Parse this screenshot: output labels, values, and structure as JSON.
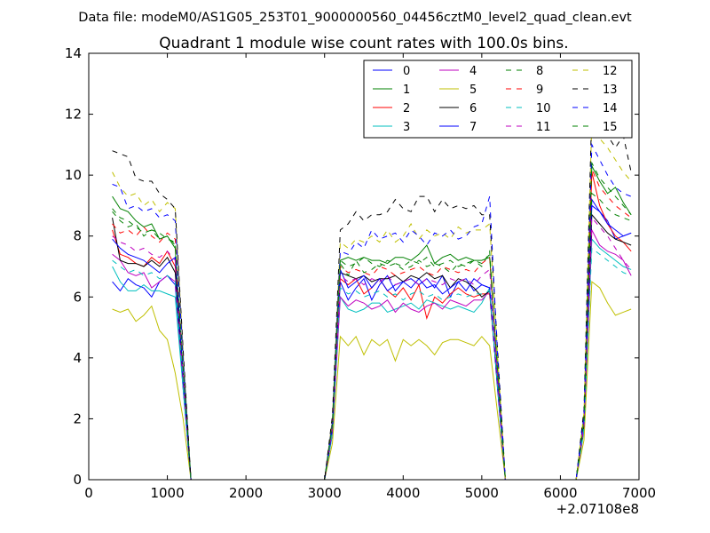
{
  "figure": {
    "suptitle": "Data file: modeM0/AS1G05_253T01_9000000560_04456cztM0_level2_quad_clean.evt",
    "x_offset_label": "+2.07108e8"
  },
  "chart_data": {
    "type": "line",
    "title": "Quadrant 1 module wise count rates with 100.0s bins.",
    "xlabel": "",
    "ylabel": "",
    "xlim": [
      0,
      7000
    ],
    "ylim": [
      0,
      14
    ],
    "xticks": [
      0,
      1000,
      2000,
      3000,
      4000,
      5000,
      6000,
      7000
    ],
    "yticks": [
      0,
      2,
      4,
      6,
      8,
      10,
      12,
      14
    ],
    "grid": false,
    "legend_position": "top-right",
    "legend_columns": 4,
    "x": [
      300,
      400,
      500,
      600,
      700,
      800,
      900,
      1000,
      1100,
      1200,
      1300,
      1400,
      1500,
      1600,
      1700,
      1800,
      1900,
      2000,
      2100,
      2200,
      2300,
      2400,
      2500,
      2600,
      2700,
      2800,
      2900,
      3000,
      3100,
      3200,
      3300,
      3400,
      3500,
      3600,
      3700,
      3800,
      3900,
      4000,
      4100,
      4200,
      4300,
      4400,
      4500,
      4600,
      4700,
      4800,
      4900,
      5000,
      5100,
      5200,
      5300,
      5400,
      5500,
      5600,
      5700,
      5800,
      5900,
      6000,
      6100,
      6200,
      6300,
      6400,
      6500,
      6600,
      6700,
      6800,
      6900
    ],
    "series": [
      {
        "name": "0",
        "color": "#0000ff",
        "dash": "solid",
        "values": [
          6.5,
          6.2,
          6.6,
          6.4,
          6.3,
          6.0,
          6.5,
          6.7,
          6.4,
          3.0,
          0,
          0,
          0,
          0,
          0,
          0,
          0,
          0,
          0,
          0,
          0,
          0,
          0,
          0,
          0,
          0,
          0,
          0,
          1.5,
          6.5,
          5.9,
          6.3,
          6.6,
          5.9,
          6.4,
          6.7,
          6.2,
          6.5,
          6.6,
          6.4,
          6.6,
          6.3,
          6.7,
          6.0,
          6.5,
          6.6,
          6.2,
          6.4,
          6.3,
          3.0,
          0,
          0,
          0,
          0,
          0,
          0,
          0,
          0,
          0,
          0,
          1.8,
          9.0,
          8.8,
          8.5,
          7.9,
          8.0,
          8.1
        ]
      },
      {
        "name": "1",
        "color": "#008000",
        "dash": "solid",
        "values": [
          9.3,
          8.9,
          8.8,
          8.5,
          8.3,
          8.4,
          7.9,
          8.0,
          7.6,
          3.5,
          0,
          0,
          0,
          0,
          0,
          0,
          0,
          0,
          0,
          0,
          0,
          0,
          0,
          0,
          0,
          0,
          0,
          0,
          1.8,
          7.2,
          7.3,
          7.2,
          7.3,
          7.2,
          7.2,
          7.1,
          7.3,
          7.3,
          7.2,
          7.4,
          7.7,
          7.1,
          7.3,
          7.4,
          7.2,
          7.3,
          7.2,
          7.2,
          7.3,
          3.6,
          0,
          0,
          0,
          0,
          0,
          0,
          0,
          0,
          0,
          0,
          2.0,
          10.3,
          9.8,
          9.4,
          9.6,
          9.1,
          8.7
        ]
      },
      {
        "name": "2",
        "color": "#ff0000",
        "dash": "solid",
        "values": [
          8.2,
          7.4,
          7.3,
          7.1,
          7.0,
          7.3,
          7.1,
          7.5,
          7.0,
          3.4,
          0,
          0,
          0,
          0,
          0,
          0,
          0,
          0,
          0,
          0,
          0,
          0,
          0,
          0,
          0,
          0,
          0,
          0,
          1.7,
          6.6,
          6.4,
          6.6,
          6.1,
          6.3,
          6.6,
          6.2,
          6.0,
          6.3,
          5.9,
          6.4,
          5.3,
          6.0,
          5.8,
          6.1,
          6.3,
          6.1,
          6.0,
          6.1,
          6.1,
          3.1,
          0,
          0,
          0,
          0,
          0,
          0,
          0,
          0,
          0,
          0,
          1.9,
          10.1,
          9.0,
          8.4,
          8.0,
          7.8,
          7.5
        ]
      },
      {
        "name": "3",
        "color": "#00bfbf",
        "dash": "solid",
        "values": [
          7.0,
          6.5,
          6.2,
          6.2,
          6.4,
          6.2,
          6.2,
          6.1,
          6.0,
          3.0,
          0,
          0,
          0,
          0,
          0,
          0,
          0,
          0,
          0,
          0,
          0,
          0,
          0,
          0,
          0,
          0,
          0,
          0,
          1.5,
          6.0,
          5.6,
          5.5,
          5.6,
          5.8,
          5.8,
          5.5,
          5.6,
          5.7,
          5.8,
          5.6,
          5.9,
          5.8,
          5.7,
          5.6,
          5.7,
          5.6,
          5.5,
          5.8,
          6.3,
          3.0,
          0,
          0,
          0,
          0,
          0,
          0,
          0,
          0,
          0,
          0,
          1.6,
          7.9,
          7.6,
          7.4,
          7.2,
          7.0,
          6.9
        ]
      },
      {
        "name": "4",
        "color": "#bf00bf",
        "dash": "solid",
        "values": [
          7.4,
          7.2,
          6.8,
          6.7,
          6.8,
          6.3,
          6.5,
          6.7,
          6.5,
          3.2,
          0,
          0,
          0,
          0,
          0,
          0,
          0,
          0,
          0,
          0,
          0,
          0,
          0,
          0,
          0,
          0,
          0,
          0,
          1.6,
          6.0,
          5.7,
          5.9,
          5.8,
          5.6,
          5.7,
          5.9,
          5.5,
          5.8,
          5.6,
          5.5,
          5.7,
          5.8,
          5.6,
          5.9,
          5.8,
          5.7,
          5.9,
          5.9,
          6.2,
          3.1,
          0,
          0,
          0,
          0,
          0,
          0,
          0,
          0,
          0,
          0,
          1.7,
          8.2,
          7.7,
          7.5,
          7.4,
          7.2,
          6.7
        ]
      },
      {
        "name": "5",
        "color": "#bfbf00",
        "dash": "solid",
        "values": [
          5.6,
          5.5,
          5.6,
          5.2,
          5.4,
          5.7,
          4.9,
          4.6,
          3.5,
          2.0,
          0,
          0,
          0,
          0,
          0,
          0,
          0,
          0,
          0,
          0,
          0,
          0,
          0,
          0,
          0,
          0,
          0,
          0,
          1.2,
          4.7,
          4.4,
          4.7,
          4.1,
          4.6,
          4.4,
          4.6,
          3.9,
          4.6,
          4.4,
          4.6,
          4.4,
          4.1,
          4.5,
          4.6,
          4.6,
          4.5,
          4.4,
          4.7,
          4.4,
          2.2,
          0,
          0,
          0,
          0,
          0,
          0,
          0,
          0,
          0,
          0,
          1.3,
          6.5,
          6.3,
          5.8,
          5.4,
          5.5,
          5.6
        ]
      },
      {
        "name": "6",
        "color": "#000000",
        "dash": "solid",
        "values": [
          8.6,
          7.2,
          7.1,
          7.1,
          7.0,
          7.2,
          7.0,
          7.3,
          6.8,
          3.4,
          0,
          0,
          0,
          0,
          0,
          0,
          0,
          0,
          0,
          0,
          0,
          0,
          0,
          0,
          0,
          0,
          0,
          0,
          1.7,
          6.8,
          6.7,
          6.6,
          6.7,
          6.5,
          6.6,
          6.6,
          6.7,
          6.5,
          6.7,
          6.6,
          6.8,
          6.6,
          6.7,
          6.3,
          6.6,
          6.5,
          6.3,
          6.0,
          6.2,
          3.1,
          0,
          0,
          0,
          0,
          0,
          0,
          0,
          0,
          0,
          0,
          1.8,
          8.7,
          8.4,
          8.1,
          7.9,
          7.8,
          7.7
        ]
      },
      {
        "name": "7",
        "color": "#0000ff",
        "dash": "solid",
        "values": [
          7.9,
          7.6,
          7.4,
          7.3,
          7.2,
          7.0,
          6.8,
          7.1,
          7.3,
          3.4,
          0,
          0,
          0,
          0,
          0,
          0,
          0,
          0,
          0,
          0,
          0,
          0,
          0,
          0,
          0,
          0,
          0,
          0,
          1.7,
          6.9,
          6.3,
          6.5,
          6.7,
          6.3,
          6.6,
          6.2,
          6.4,
          6.5,
          6.3,
          6.6,
          6.3,
          6.4,
          6.1,
          6.3,
          6.5,
          6.2,
          6.6,
          6.4,
          6.3,
          3.1,
          0,
          0,
          0,
          0,
          0,
          0,
          0,
          0,
          0,
          0,
          1.9,
          9.2,
          8.8,
          8.4,
          8.2,
          8.0,
          8.1
        ]
      },
      {
        "name": "8",
        "color": "#008000",
        "dash": "dashed",
        "values": [
          8.8,
          8.5,
          8.3,
          8.4,
          8.0,
          8.2,
          8.1,
          7.9,
          7.8,
          3.6,
          0,
          0,
          0,
          0,
          0,
          0,
          0,
          0,
          0,
          0,
          0,
          0,
          0,
          0,
          0,
          0,
          0,
          0,
          1.8,
          7.1,
          6.7,
          7.2,
          6.8,
          6.9,
          7.1,
          7.0,
          7.1,
          6.9,
          7.0,
          7.2,
          7.0,
          7.1,
          7.0,
          6.8,
          7.1,
          7.0,
          7.2,
          7.0,
          7.5,
          3.5,
          0,
          0,
          0,
          0,
          0,
          0,
          0,
          0,
          0,
          0,
          2.0,
          9.4,
          9.2,
          8.9,
          8.7,
          8.6,
          8.5
        ]
      },
      {
        "name": "9",
        "color": "#ff0000",
        "dash": "dashed",
        "values": [
          8.4,
          8.1,
          8.2,
          8.0,
          8.3,
          8.0,
          7.8,
          8.1,
          7.9,
          3.6,
          0,
          0,
          0,
          0,
          0,
          0,
          0,
          0,
          0,
          0,
          0,
          0,
          0,
          0,
          0,
          0,
          0,
          0,
          1.8,
          7.0,
          6.8,
          6.9,
          6.8,
          6.7,
          7.0,
          6.9,
          6.7,
          6.8,
          6.9,
          7.0,
          6.8,
          6.7,
          7.0,
          6.9,
          6.8,
          6.9,
          6.8,
          7.1,
          7.3,
          3.5,
          0,
          0,
          0,
          0,
          0,
          0,
          0,
          0,
          0,
          0,
          1.9,
          10.2,
          9.6,
          9.3,
          9.0,
          8.8,
          8.6
        ]
      },
      {
        "name": "10",
        "color": "#00bfbf",
        "dash": "dashed",
        "values": [
          7.2,
          7.0,
          6.8,
          6.9,
          6.7,
          6.8,
          6.6,
          6.7,
          6.5,
          3.2,
          0,
          0,
          0,
          0,
          0,
          0,
          0,
          0,
          0,
          0,
          0,
          0,
          0,
          0,
          0,
          0,
          0,
          0,
          1.6,
          6.3,
          6.1,
          6.2,
          6.0,
          6.1,
          6.2,
          6.0,
          6.1,
          5.9,
          6.1,
          6.2,
          6.0,
          6.1,
          5.9,
          6.0,
          6.1,
          6.0,
          6.1,
          6.1,
          6.2,
          3.1,
          0,
          0,
          0,
          0,
          0,
          0,
          0,
          0,
          0,
          0,
          1.7,
          7.6,
          7.4,
          7.2,
          7.0,
          6.8,
          6.7
        ]
      },
      {
        "name": "11",
        "color": "#bf00bf",
        "dash": "dashed",
        "values": [
          8.0,
          7.8,
          7.7,
          7.5,
          7.6,
          7.4,
          7.3,
          7.5,
          7.2,
          3.5,
          0,
          0,
          0,
          0,
          0,
          0,
          0,
          0,
          0,
          0,
          0,
          0,
          0,
          0,
          0,
          0,
          0,
          0,
          1.7,
          6.7,
          6.5,
          6.6,
          6.4,
          6.6,
          6.5,
          6.7,
          6.4,
          6.5,
          6.6,
          6.4,
          6.6,
          6.5,
          6.4,
          6.6,
          6.5,
          6.6,
          6.4,
          6.7,
          6.9,
          3.3,
          0,
          0,
          0,
          0,
          0,
          0,
          0,
          0,
          0,
          0,
          1.8,
          8.6,
          8.3,
          8.0,
          7.6,
          7.2,
          6.9
        ]
      },
      {
        "name": "12",
        "color": "#bfbf00",
        "dash": "dashed",
        "values": [
          10.1,
          9.6,
          9.3,
          9.4,
          9.0,
          9.2,
          8.8,
          9.1,
          8.9,
          4.2,
          0,
          0,
          0,
          0,
          0,
          0,
          0,
          0,
          0,
          0,
          0,
          0,
          0,
          0,
          0,
          0,
          0,
          0,
          2.0,
          7.8,
          7.6,
          7.9,
          7.8,
          8.0,
          7.8,
          8.2,
          7.8,
          8.0,
          8.4,
          7.9,
          8.2,
          8.0,
          8.1,
          7.9,
          8.3,
          8.1,
          8.2,
          8.2,
          8.4,
          4.1,
          0,
          0,
          0,
          0,
          0,
          0,
          0,
          0,
          0,
          0,
          2.2,
          11.8,
          11.2,
          10.9,
          10.5,
          10.1,
          9.8
        ]
      },
      {
        "name": "13",
        "color": "#000000",
        "dash": "dashed",
        "values": [
          10.8,
          10.7,
          10.6,
          9.9,
          9.8,
          9.8,
          9.4,
          9.2,
          8.9,
          4.3,
          0,
          0,
          0,
          0,
          0,
          0,
          0,
          0,
          0,
          0,
          0,
          0,
          0,
          0,
          0,
          0,
          0,
          0,
          2.1,
          8.2,
          8.4,
          8.8,
          8.5,
          8.7,
          8.7,
          8.8,
          9.2,
          8.9,
          8.8,
          9.3,
          9.3,
          8.8,
          9.2,
          8.9,
          9.0,
          8.9,
          9.0,
          8.7,
          8.7,
          4.3,
          0,
          0,
          0,
          0,
          0,
          0,
          0,
          0,
          0,
          0,
          2.3,
          12.2,
          11.8,
          11.3,
          10.9,
          11.3,
          10.1
        ]
      },
      {
        "name": "14",
        "color": "#0000ff",
        "dash": "dashed",
        "values": [
          9.7,
          9.6,
          8.9,
          9.0,
          8.8,
          8.9,
          8.6,
          8.7,
          8.5,
          4.0,
          0,
          0,
          0,
          0,
          0,
          0,
          0,
          0,
          0,
          0,
          0,
          0,
          0,
          0,
          0,
          0,
          0,
          0,
          1.9,
          7.5,
          7.4,
          7.8,
          7.6,
          8.2,
          7.9,
          8.0,
          8.1,
          7.8,
          8.2,
          8.0,
          7.7,
          8.1,
          8.0,
          8.2,
          7.9,
          8.0,
          8.3,
          8.4,
          9.3,
          4.1,
          0,
          0,
          0,
          0,
          0,
          0,
          0,
          0,
          0,
          0,
          2.1,
          11.0,
          10.5,
          10.0,
          9.6,
          9.4,
          9.3
        ]
      },
      {
        "name": "15",
        "color": "#008000",
        "dash": "dashed",
        "values": [
          8.9,
          8.6,
          8.5,
          8.3,
          8.1,
          8.2,
          7.9,
          8.0,
          7.7,
          3.7,
          0,
          0,
          0,
          0,
          0,
          0,
          0,
          0,
          0,
          0,
          0,
          0,
          0,
          0,
          0,
          0,
          0,
          0,
          1.8,
          7.2,
          7.0,
          7.1,
          7.3,
          7.1,
          7.0,
          7.2,
          7.1,
          7.0,
          7.2,
          7.1,
          7.3,
          7.0,
          7.1,
          7.2,
          7.0,
          7.1,
          7.2,
          7.1,
          7.4,
          3.6,
          0,
          0,
          0,
          0,
          0,
          0,
          0,
          0,
          0,
          0,
          1.9,
          10.4,
          9.9,
          9.6,
          9.3,
          9.0,
          8.7
        ]
      }
    ]
  }
}
